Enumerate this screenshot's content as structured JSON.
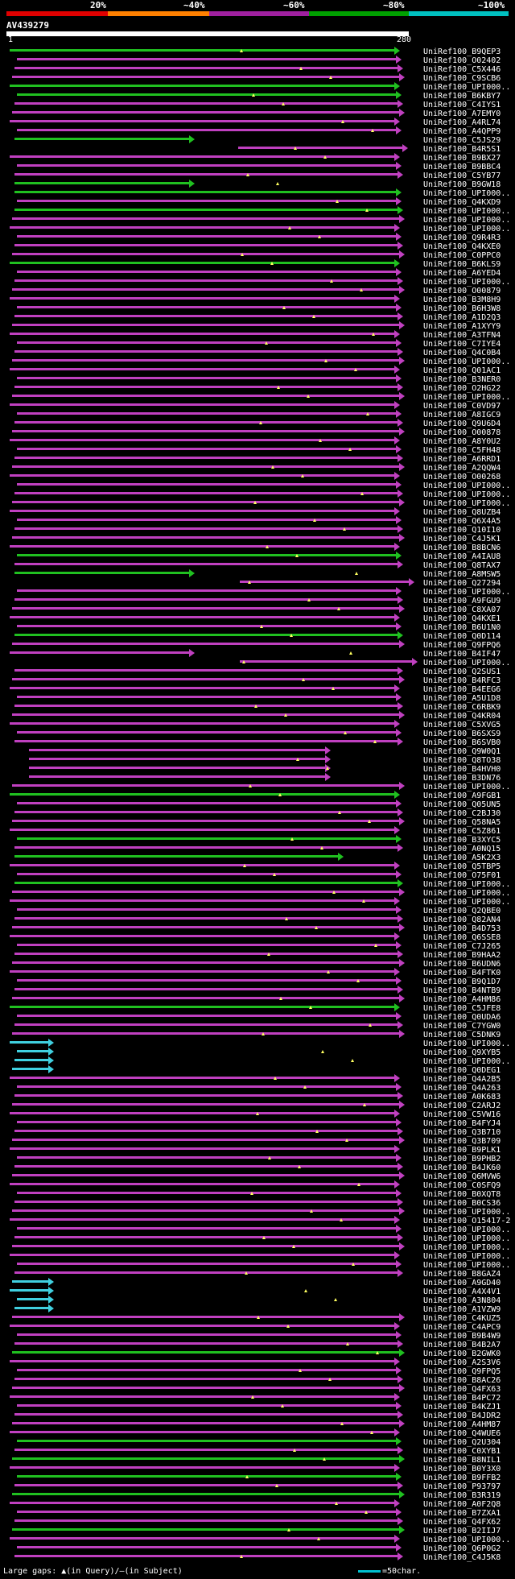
{
  "query": {
    "name": "AV439279",
    "start": "1",
    "end": "280"
  },
  "scale": {
    "labels": [
      "20%",
      "~40%",
      "~60%",
      "~80%",
      "~100%"
    ],
    "colors": [
      "#e00000",
      "#ff8000",
      "#a020a0",
      "#00a000",
      "#00c0c0"
    ]
  },
  "hit_colors": {
    "magenta": "#c040c0",
    "green": "#20c020",
    "cyan": "#40d0e0",
    "gap_query": "#ffff60"
  },
  "hits": [
    "UniRef100_B9QEP3",
    "UniRef100_O02402",
    "UniRef100_C5X446",
    "UniRef100_C9SCB6",
    "UniRef100_UPI000..",
    "UniRef100_B6KBY7",
    "UniRef100_C4IYS1",
    "UniRef100_A7EMY0",
    "UniRef100_A4RL74",
    "UniRef100_A4QPP9",
    "UniRef100_C5JS29",
    "UniRef100_B4R5S1",
    "UniRef100_B9BX27",
    "UniRef100_B9BBC4",
    "UniRef100_C5YB77",
    "UniRef100_B9GW18",
    "UniRef100_UPI000..",
    "UniRef100_Q4KXD9",
    "UniRef100_UPI000..",
    "UniRef100_UPI000..",
    "UniRef100_UPI000..",
    "UniRef100_Q9R4R3",
    "UniRef100_Q4KXE0",
    "UniRef100_C0PPC0",
    "UniRef100_B6KLS9",
    "UniRef100_A6YED4",
    "UniRef100_UPI000..",
    "UniRef100_O00879",
    "UniRef100_B3M8H9",
    "UniRef100_B6H3W8",
    "UniRef100_A1D2Q3",
    "UniRef100_A1XYY9",
    "UniRef100_A3TFN4",
    "UniRef100_C7IYE4",
    "UniRef100_Q4C0B4",
    "UniRef100_UPI000..",
    "UniRef100_Q01AC1",
    "UniRef100_B3NER0",
    "UniRef100_O2HG22",
    "UniRef100_UPI000..",
    "UniRef100_C0VD97",
    "UniRef100_A8IGC9",
    "UniRef100_Q9U6D4",
    "UniRef100_O00878",
    "UniRef100_A8Y0U2",
    "UniRef100_C5FH48",
    "UniRef100_A6RRD1",
    "UniRef100_A2QQW4",
    "UniRef100_O00268",
    "UniRef100_UPI000..",
    "UniRef100_UPI000..",
    "UniRef100_UPI000..",
    "UniRef100_Q8UZB4",
    "UniRef100_Q6X4A5",
    "UniRef100_Q10I10",
    "UniRef100_C4J5K1",
    "UniRef100_B8BCN6",
    "UniRef100_A4IAU8",
    "UniRef100_Q8TAX7",
    "UniRef100_A8MSW5",
    "UniRef100_Q27294",
    "UniRef100_UPI000..",
    "UniRef100_A9FGU9",
    "UniRef100_C8XA07",
    "UniRef100_Q4KXE1",
    "UniRef100_B6U1N0",
    "UniRef100_Q0D114",
    "UniRef100_Q9FPQ6",
    "UniRef100_B4IF47",
    "UniRef100_UPI000..",
    "UniRef100_Q2SUS1",
    "UniRef100_B4RFC3",
    "UniRef100_B4EEG6",
    "UniRef100_A5U1D8",
    "UniRef100_C6RBK9",
    "UniRef100_Q4KR04",
    "UniRef100_C5XVG5",
    "UniRef100_B6SXS9",
    "UniRef100_B6SVB0",
    "UniRef100_Q9W0Q1",
    "UniRef100_Q8TO38",
    "UniRef100_B4HVH0",
    "UniRef100_B3DN76",
    "UniRef100_UPI000..",
    "UniRef100_A9FGB1",
    "UniRef100_Q05UN5",
    "UniRef100_C2BJ30",
    "UniRef100_Q58NA5",
    "UniRef100_C5Z861",
    "UniRef100_B3XYC5",
    "UniRef100_A0NQ15",
    "UniRef100_A5K2X3",
    "UniRef100_Q5TBP5",
    "UniRef100_O75F01",
    "UniRef100_UPI000..",
    "UniRef100_UPI000..",
    "UniRef100_UPI000..",
    "UniRef100_Q2QBE0",
    "UniRef100_Q82AN4",
    "UniRef100_B4D753",
    "UniRef100_Q6SSE8",
    "UniRef100_C7J265",
    "UniRef100_B9HAA2",
    "UniRef100_B6UDN6",
    "UniRef100_B4FTK0",
    "UniRef100_B9Q1D7",
    "UniRef100_B4NTB9",
    "UniRef100_A4HM86",
    "UniRef100_C5JFE8",
    "UniRef100_Q0UDA6",
    "UniRef100_C7YGW0",
    "UniRef100_C5DNK9",
    "UniRef100_UPI000..",
    "UniRef100_Q9XYB5",
    "UniRef100_UPI000..",
    "UniRef100_Q0DEG1",
    "UniRef100_Q4A2B5",
    "UniRef100_Q4A263",
    "UniRef100_A0K683",
    "UniRef100_C2ARJ2",
    "UniRef100_C5VW16",
    "UniRef100_B4FYJ4",
    "UniRef100_Q3B710",
    "UniRef100_Q3B709",
    "UniRef100_B9PLK1",
    "UniRef100_B9PHB2",
    "UniRef100_B4JK60",
    "UniRef100_Q6MVW6",
    "UniRef100_C0SFQ9",
    "UniRef100_B0XQT8",
    "UniRef100_B0CS36",
    "UniRef100_UPI000..",
    "UniRef100_O15417-2",
    "UniRef100_UPI000..",
    "UniRef100_UPI000..",
    "UniRef100_UPI000..",
    "UniRef100_UPI000..",
    "UniRef100_UPI000..",
    "UniRef100_B8GAZ4",
    "UniRef100_A9GD40",
    "UniRef100_A4X4V1",
    "UniRef100_A3N804",
    "UniRef100_A1VZW9",
    "UniRef100_C4KUZ5",
    "UniRef100_C4APC9",
    "UniRef100_B9B4W9",
    "UniRef100_B4B2A7",
    "UniRef100_B2GWK0",
    "UniRef100_A2S3V6",
    "UniRef100_Q9FPQ5",
    "UniRef100_B8AC26",
    "UniRef100_Q4FX63",
    "UniRef100_B4PC72",
    "UniRef100_B4KZJ1",
    "UniRef100_B4JDR2",
    "UniRef100_A4HM87",
    "UniRef100_Q4WUE6",
    "UniRef100_Q2U304",
    "UniRef100_C0XYB1",
    "UniRef100_B8NIL1",
    "UniRef100_B0Y3X0",
    "UniRef100_B9FFB2",
    "UniRef100_P93797",
    "UniRef100_B3R319",
    "UniRef100_A0F2Q8",
    "UniRef100_B7ZXA1",
    "UniRef100_Q4FX62",
    "UniRef100_B2IIJ7",
    "UniRef100_UPI000..",
    "UniRef100_Q6P0G2",
    "UniRef100_C4J5K8"
  ],
  "footer": {
    "legend": "Large gaps: ▲(in Query)/–(in Subject)",
    "scale_note": "=50char."
  }
}
